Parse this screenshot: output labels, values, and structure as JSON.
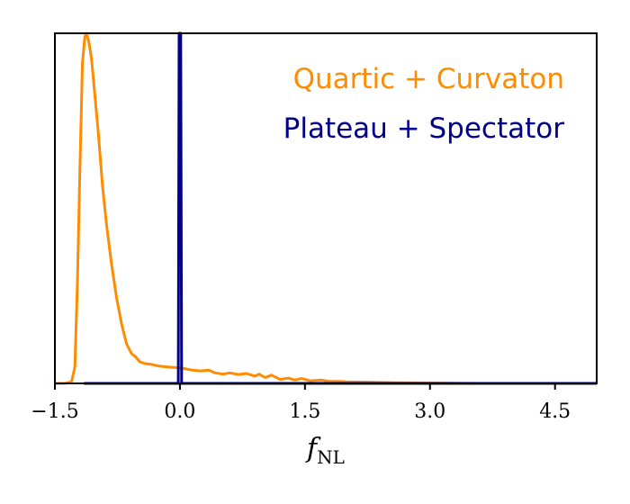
{
  "chart_data": {
    "type": "line",
    "title": "",
    "xlabel": "f",
    "xlabel_subscript": "NL",
    "ylabel": "",
    "xlim": [
      -1.5,
      5.0
    ],
    "ylim": [
      0,
      1.06
    ],
    "x_ticks": [
      -1.5,
      0.0,
      1.5,
      3.0,
      4.5
    ],
    "x_tick_labels": [
      "−1.5",
      "0.0",
      "1.5",
      "3.0",
      "4.5"
    ],
    "y_ticks_visible": false,
    "grid": false,
    "legend_position": "top-right",
    "series": [
      {
        "name": "Quartic + Curvaton",
        "color": "#ff8c00",
        "x": [
          -1.5,
          -1.38,
          -1.3,
          -1.26,
          -1.23,
          -1.2,
          -1.17,
          -1.14,
          -1.12,
          -1.09,
          -1.06,
          -1.03,
          -0.98,
          -0.93,
          -0.88,
          -0.82,
          -0.76,
          -0.7,
          -0.64,
          -0.58,
          -0.53,
          -0.48,
          -0.42,
          -0.35,
          -0.3,
          -0.24,
          -0.15,
          -0.05,
          0.05,
          0.15,
          0.25,
          0.35,
          0.42,
          0.52,
          0.6,
          0.7,
          0.8,
          0.9,
          0.95,
          1.02,
          1.1,
          1.2,
          1.3,
          1.38,
          1.46,
          1.56,
          1.7,
          1.8,
          1.9,
          2.0,
          2.2,
          2.4,
          2.6,
          3.0,
          3.5,
          4.0,
          5.0
        ],
        "y": [
          0.0,
          0.0,
          0.005,
          0.05,
          0.3,
          0.65,
          0.97,
          1.05,
          1.06,
          1.03,
          0.98,
          0.9,
          0.76,
          0.6,
          0.48,
          0.36,
          0.26,
          0.18,
          0.12,
          0.09,
          0.08,
          0.065,
          0.06,
          0.058,
          0.055,
          0.052,
          0.05,
          0.048,
          0.045,
          0.04,
          0.038,
          0.04,
          0.032,
          0.028,
          0.032,
          0.027,
          0.03,
          0.022,
          0.028,
          0.018,
          0.025,
          0.012,
          0.016,
          0.01,
          0.015,
          0.008,
          0.01,
          0.006,
          0.006,
          0.005,
          0.004,
          0.003,
          0.002,
          0.001,
          0.0,
          0.0,
          0.0
        ]
      },
      {
        "name": "Plateau + Spectator",
        "color": "#00008b",
        "x": [
          -1.15,
          -0.02,
          -0.01,
          0.0,
          0.01,
          0.02,
          5.0
        ],
        "y": [
          0.0,
          0.0,
          1.06,
          1.06,
          1.06,
          0.0,
          0.0
        ]
      }
    ]
  }
}
